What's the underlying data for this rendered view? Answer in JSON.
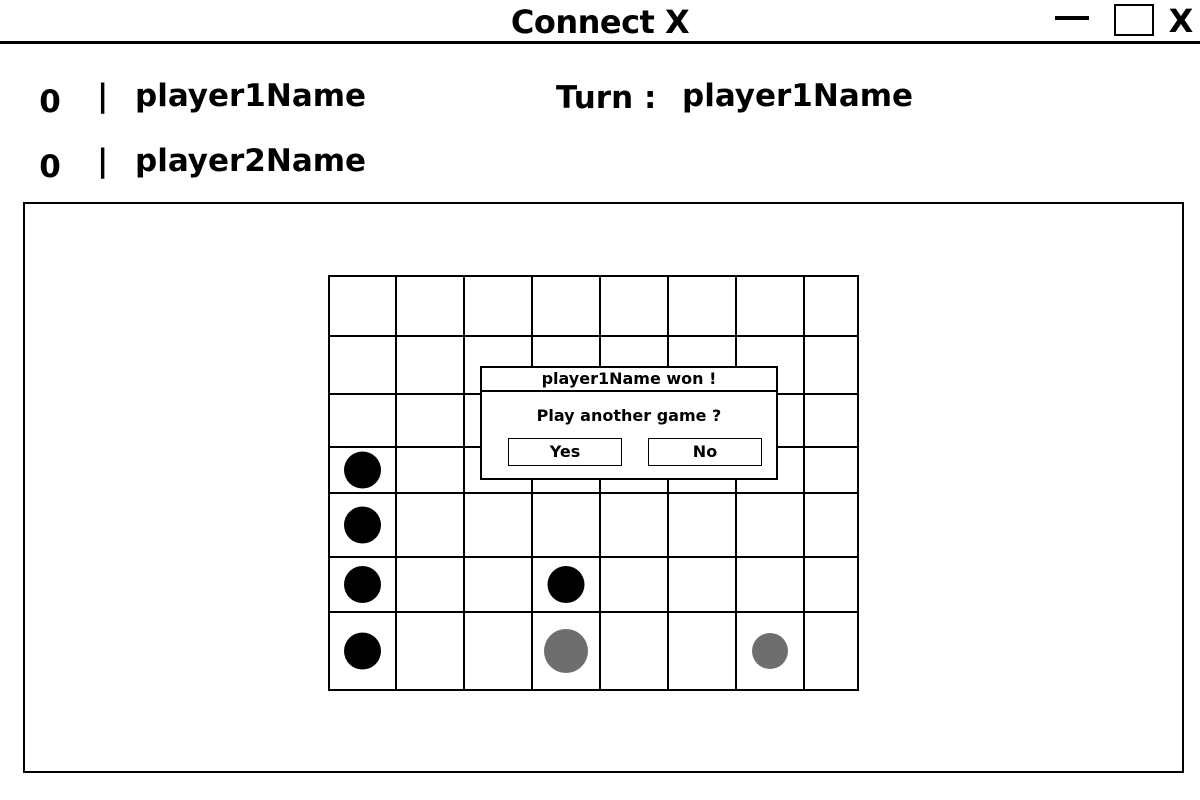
{
  "window": {
    "title": "Connect X",
    "close_label": "X"
  },
  "players": [
    {
      "score": "0",
      "name": "player1Name"
    },
    {
      "score": "0",
      "name": "player2Name"
    }
  ],
  "score_separator": "|",
  "turn": {
    "label": "Turn",
    "colon": ":",
    "value": "player1Name"
  },
  "board": {
    "rows": 7,
    "columns": 8,
    "discs": [
      {
        "row": 4,
        "col": 1,
        "player": 1
      },
      {
        "row": 5,
        "col": 1,
        "player": 1
      },
      {
        "row": 6,
        "col": 1,
        "player": 1
      },
      {
        "row": 6,
        "col": 4,
        "player": 1
      },
      {
        "row": 7,
        "col": 1,
        "player": 1
      },
      {
        "row": 7,
        "col": 4,
        "player": 2
      },
      {
        "row": 7,
        "col": 7,
        "player": 2
      }
    ],
    "colors": {
      "player1": "#000000",
      "player2": "#6e6e6e"
    }
  },
  "dialog": {
    "title": "player1Name won  !",
    "message": "Play another game  ?",
    "yes_label": "Yes",
    "no_label": "No"
  }
}
